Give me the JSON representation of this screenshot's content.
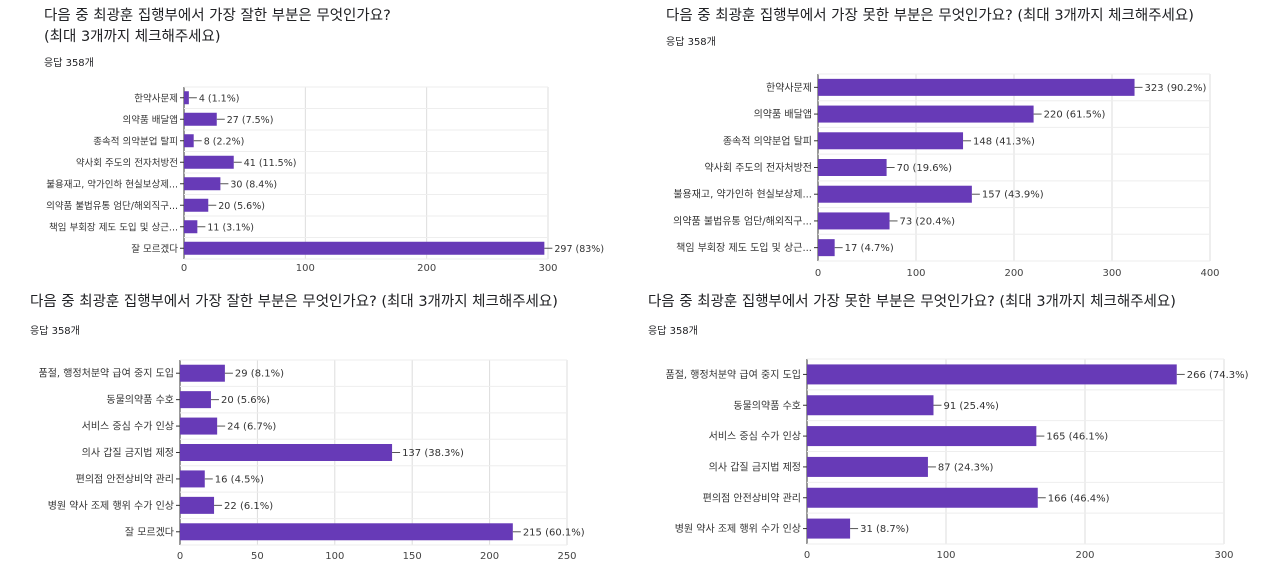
{
  "charts": [
    {
      "title": "다음 중 최광훈 집행부에서 가장 잘한 부분은 무엇인가요?\n(최대 3개까지 체크해주세요)",
      "responses": "응답 358개"
    },
    {
      "title": "다음 중 최광훈 집행부에서 가장 못한 부분은 무엇인가요? (최대 3개까지 체크해주세요)",
      "responses": "응답 358개"
    },
    {
      "title": "다음 중 최광훈 집행부에서 가장 잘한 부분은 무엇인가요? (최대 3개까지 체크해주세요)",
      "responses": "응답 358개"
    },
    {
      "title": "다음 중 최광훈 집행부에서 가장 못한 부분은 무엇인가요? (최대 3개까지 체크해주세요)",
      "responses": "응답 358개"
    }
  ],
  "chart_data": [
    {
      "type": "bar",
      "orientation": "horizontal",
      "title": "다음 중 최광훈 집행부에서 가장 잘한 부분은 무엇인가요? (최대 3개까지 체크해주세요)",
      "categories": [
        "한약사문제",
        "의약품 배달앱",
        "종속적 의약분업 탈피",
        "약사회 주도의 전자처방전",
        "불용재고, 약가인하 현실보상제...",
        "의약품 불법유통 엄단/해외직구...",
        "책임 부회장 제도 도입 및 상근...",
        "잘 모르겠다"
      ],
      "values": [
        4,
        27,
        8,
        41,
        30,
        20,
        11,
        297
      ],
      "labels": [
        "4 (1.1%)",
        "27 (7.5%)",
        "8 (2.2%)",
        "41 (11.5%)",
        "30 (8.4%)",
        "20 (5.6%)",
        "11 (3.1%)",
        "297 (83%)"
      ],
      "xlim": [
        0,
        300
      ],
      "ticks": [
        0,
        100,
        200,
        300
      ],
      "color": "#673ab7"
    },
    {
      "type": "bar",
      "orientation": "horizontal",
      "title": "다음 중 최광훈 집행부에서 가장 못한 부분은 무엇인가요? (최대 3개까지 체크해주세요)",
      "categories": [
        "한약사문제",
        "의약품 배달앱",
        "종속적 의약분업 탈피",
        "약사회 주도의 전자처방전",
        "불용재고, 약가인하 현실보상제...",
        "의약품 불법유통 엄단/해외직구...",
        "책임 부회장 제도 도입 및 상근..."
      ],
      "values": [
        323,
        220,
        148,
        70,
        157,
        73,
        17
      ],
      "labels": [
        "323 (90.2%)",
        "220 (61.5%)",
        "148 (41.3%)",
        "70 (19.6%)",
        "157 (43.9%)",
        "73 (20.4%)",
        "17 (4.7%)"
      ],
      "xlim": [
        0,
        400
      ],
      "ticks": [
        0,
        100,
        200,
        300,
        400
      ],
      "color": "#673ab7"
    },
    {
      "type": "bar",
      "orientation": "horizontal",
      "title": "다음 중 최광훈 집행부에서 가장 잘한 부분은 무엇인가요? (최대 3개까지 체크해주세요)",
      "categories": [
        "품절, 행정처분약 급여 중지 도입",
        "동물의약품 수호",
        "서비스 중심 수가 인상",
        "의사 갑질 금지법 제정",
        "편의점 안전상비약 관리",
        "병원 약사 조제 행위 수가 인상",
        "잘 모르겠다"
      ],
      "values": [
        29,
        20,
        24,
        137,
        16,
        22,
        215
      ],
      "labels": [
        "29 (8.1%)",
        "20 (5.6%)",
        "24 (6.7%)",
        "137 (38.3%)",
        "16 (4.5%)",
        "22 (6.1%)",
        "215 (60.1%)"
      ],
      "xlim": [
        0,
        250
      ],
      "ticks": [
        0,
        50,
        100,
        150,
        200,
        250
      ],
      "color": "#673ab7"
    },
    {
      "type": "bar",
      "orientation": "horizontal",
      "title": "다음 중 최광훈 집행부에서 가장 못한 부분은 무엇인가요? (최대 3개까지 체크해주세요)",
      "categories": [
        "품절, 행정처분약 급여 중지 도입",
        "동물의약품 수호",
        "서비스 중심 수가 인상",
        "의사 갑질 금지법 제정",
        "편의점 안전상비약 관리",
        "병원 약사 조제 행위 수가 인상"
      ],
      "values": [
        266,
        91,
        165,
        87,
        166,
        31
      ],
      "labels": [
        "266 (74.3%)",
        "91 (25.4%)",
        "165 (46.1%)",
        "87 (24.3%)",
        "166 (46.4%)",
        "31 (8.7%)"
      ],
      "xlim": [
        0,
        300
      ],
      "ticks": [
        0,
        100,
        200,
        300
      ],
      "color": "#673ab7"
    }
  ]
}
